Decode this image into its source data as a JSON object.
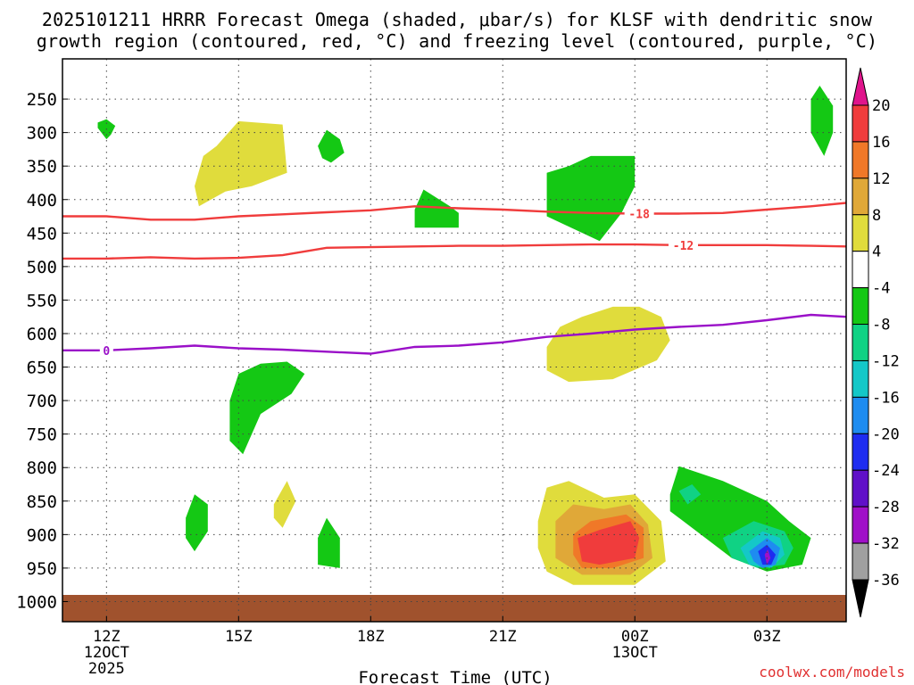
{
  "chart_data": {
    "type": "heatmap",
    "title_line1": "2025101211 HRRR Forecast Omega (shaded, μbar/s) for KLSF with dendritic snow",
    "title_line2": "growth region (contoured, red, °C) and freezing level (contoured, purple, °C)",
    "xlabel": "Forecast Time (UTC)",
    "ylabel": "",
    "watermark": "coolwx.com/models",
    "xlim": [
      11.0,
      28.8
    ],
    "ylim": [
      1030,
      190
    ],
    "y_ticks": [
      250,
      300,
      350,
      400,
      450,
      500,
      550,
      600,
      650,
      700,
      750,
      800,
      850,
      900,
      950,
      1000
    ],
    "y_tick_labels": [
      "250",
      "300",
      "350",
      "400",
      "450",
      "500",
      "550",
      "600",
      "650",
      "700",
      "750",
      "800",
      "850",
      "900",
      "950",
      "1000"
    ],
    "x_ticks": [
      {
        "hour": 12,
        "label": "12Z",
        "sub1": "12OCT",
        "sub2": "2025"
      },
      {
        "hour": 15,
        "label": "15Z",
        "sub1": "",
        "sub2": ""
      },
      {
        "hour": 18,
        "label": "18Z",
        "sub1": "",
        "sub2": ""
      },
      {
        "hour": 21,
        "label": "21Z",
        "sub1": "",
        "sub2": ""
      },
      {
        "hour": 24,
        "label": "00Z",
        "sub1": "13OCT",
        "sub2": ""
      },
      {
        "hour": 27,
        "label": "03Z",
        "sub1": "",
        "sub2": ""
      }
    ],
    "colorbar": {
      "levels": [
        "20",
        "16",
        "12",
        "8",
        "4",
        "-4",
        "-8",
        "-12",
        "-16",
        "-20",
        "-24",
        "-28",
        "-32",
        "-36"
      ],
      "colors": [
        "#f03c3c",
        "#f07828",
        "#e0a838",
        "#e0dc3c",
        "#ffffff",
        "#14c814",
        "#10d284",
        "#14c8c8",
        "#1e8cf0",
        "#1e2cf0",
        "#6010c8",
        "#a010c8",
        "#a0a0a0"
      ],
      "top_arrow_color": "#e0148c",
      "bottom_arrow_color": "#000000"
    },
    "contours": [
      {
        "name": "dgz-top",
        "value_label": "-18",
        "color": "#f03c3c",
        "points": [
          [
            11,
            425
          ],
          [
            12,
            425
          ],
          [
            13,
            430
          ],
          [
            14,
            430
          ],
          [
            15,
            425
          ],
          [
            16,
            422
          ],
          [
            17,
            419
          ],
          [
            18,
            416
          ],
          [
            19,
            410
          ],
          [
            20,
            413
          ],
          [
            21,
            415
          ],
          [
            22,
            418
          ],
          [
            23,
            420
          ],
          [
            24,
            421
          ],
          [
            25,
            421
          ],
          [
            26,
            420
          ],
          [
            27,
            415
          ],
          [
            28,
            410
          ],
          [
            28.8,
            405
          ]
        ],
        "label_hour": 24.1
      },
      {
        "name": "dgz-bottom",
        "value_label": "-12",
        "color": "#f03c3c",
        "points": [
          [
            11,
            488
          ],
          [
            12,
            488
          ],
          [
            13,
            486
          ],
          [
            14,
            488
          ],
          [
            15,
            487
          ],
          [
            16,
            483
          ],
          [
            17,
            472
          ],
          [
            18,
            471
          ],
          [
            19,
            470
          ],
          [
            20,
            469
          ],
          [
            21,
            469
          ],
          [
            22,
            468
          ],
          [
            23,
            467
          ],
          [
            24,
            467
          ],
          [
            25,
            468
          ],
          [
            26,
            468
          ],
          [
            27,
            468
          ],
          [
            28,
            469
          ],
          [
            28.8,
            470
          ]
        ],
        "label_hour": 25.1
      },
      {
        "name": "freezing-level",
        "value_label": "0",
        "color": "#9a10c8",
        "points": [
          [
            11,
            625
          ],
          [
            12,
            625
          ],
          [
            13,
            622
          ],
          [
            14,
            618
          ],
          [
            15,
            622
          ],
          [
            16,
            624
          ],
          [
            17,
            627
          ],
          [
            18,
            630
          ],
          [
            19,
            620
          ],
          [
            20,
            618
          ],
          [
            21,
            613
          ],
          [
            22,
            605
          ],
          [
            23,
            600
          ],
          [
            24,
            594
          ],
          [
            25,
            590
          ],
          [
            26,
            587
          ],
          [
            27,
            580
          ],
          [
            28,
            572
          ],
          [
            28.8,
            575
          ]
        ],
        "label_hour": 12
      }
    ],
    "omega_regions": [
      {
        "name": "green-a",
        "fill": "#14c814",
        "pts": [
          [
            11.8,
            285
          ],
          [
            12.0,
            280
          ],
          [
            12.2,
            290
          ],
          [
            12.1,
            303
          ],
          [
            12.0,
            310
          ],
          [
            11.8,
            293
          ]
        ]
      },
      {
        "name": "green-b",
        "fill": "#14c814",
        "pts": [
          [
            16.8,
            320
          ],
          [
            17.0,
            296
          ],
          [
            17.3,
            310
          ],
          [
            17.4,
            330
          ],
          [
            17.1,
            345
          ],
          [
            16.9,
            338
          ]
        ]
      },
      {
        "name": "green-c",
        "fill": "#14c814",
        "pts": [
          [
            28.0,
            250
          ],
          [
            28.2,
            230
          ],
          [
            28.5,
            260
          ],
          [
            28.5,
            300
          ],
          [
            28.3,
            335
          ],
          [
            28.0,
            300
          ]
        ]
      },
      {
        "name": "green-d",
        "fill": "#14c814",
        "pts": [
          [
            19.0,
            415
          ],
          [
            19.2,
            385
          ],
          [
            19.8,
            410
          ],
          [
            20.0,
            420
          ],
          [
            20.0,
            442
          ],
          [
            19.0,
            442
          ]
        ]
      },
      {
        "name": "green-e",
        "fill": "#14c814",
        "pts": [
          [
            22.0,
            360
          ],
          [
            22.5,
            350
          ],
          [
            23.0,
            335
          ],
          [
            24.0,
            335
          ],
          [
            24.0,
            380
          ],
          [
            23.7,
            420
          ],
          [
            23.2,
            462
          ],
          [
            22.0,
            425
          ]
        ]
      },
      {
        "name": "yellow-a",
        "fill": "#e0dc3c",
        "pts": [
          [
            14.0,
            380
          ],
          [
            14.2,
            335
          ],
          [
            14.5,
            320
          ],
          [
            15.0,
            283
          ],
          [
            16.0,
            288
          ],
          [
            16.1,
            360
          ],
          [
            15.3,
            380
          ],
          [
            14.7,
            388
          ],
          [
            14.1,
            410
          ]
        ]
      },
      {
        "name": "yellow-b",
        "fill": "#e0dc3c",
        "pts": [
          [
            22.0,
            620
          ],
          [
            22.3,
            590
          ],
          [
            22.8,
            575
          ],
          [
            23.5,
            560
          ],
          [
            24.1,
            560
          ],
          [
            24.6,
            575
          ],
          [
            24.8,
            610
          ],
          [
            24.5,
            640
          ],
          [
            23.5,
            668
          ],
          [
            22.5,
            672
          ],
          [
            22.0,
            655
          ]
        ]
      },
      {
        "name": "green-f",
        "fill": "#14c814",
        "pts": [
          [
            14.8,
            700
          ],
          [
            15.0,
            660
          ],
          [
            15.5,
            645
          ],
          [
            16.1,
            642
          ],
          [
            16.5,
            660
          ],
          [
            16.2,
            690
          ],
          [
            15.5,
            720
          ],
          [
            15.1,
            780
          ],
          [
            14.8,
            760
          ]
        ]
      },
      {
        "name": "green-g",
        "fill": "#14c814",
        "pts": [
          [
            13.8,
            875
          ],
          [
            14.0,
            840
          ],
          [
            14.3,
            855
          ],
          [
            14.3,
            895
          ],
          [
            14.0,
            925
          ],
          [
            13.8,
            905
          ]
        ]
      },
      {
        "name": "yellow-c",
        "fill": "#e0dc3c",
        "pts": [
          [
            15.8,
            855
          ],
          [
            16.1,
            820
          ],
          [
            16.3,
            850
          ],
          [
            16.0,
            890
          ],
          [
            15.8,
            875
          ]
        ]
      },
      {
        "name": "green-h",
        "fill": "#14c814",
        "pts": [
          [
            16.8,
            905
          ],
          [
            17.0,
            875
          ],
          [
            17.3,
            905
          ],
          [
            17.3,
            950
          ],
          [
            16.8,
            945
          ]
        ]
      },
      {
        "name": "yellow-d",
        "fill": "#e0dc3c",
        "pts": [
          [
            21.8,
            880
          ],
          [
            22.0,
            830
          ],
          [
            22.5,
            820
          ],
          [
            23.3,
            845
          ],
          [
            24.0,
            840
          ],
          [
            24.6,
            880
          ],
          [
            24.7,
            940
          ],
          [
            24.0,
            975
          ],
          [
            22.6,
            975
          ],
          [
            22.0,
            955
          ],
          [
            21.8,
            920
          ]
        ]
      },
      {
        "name": "orange-light",
        "fill": "#e0a838",
        "pts": [
          [
            22.2,
            880
          ],
          [
            22.6,
            855
          ],
          [
            23.3,
            862
          ],
          [
            23.9,
            855
          ],
          [
            24.3,
            885
          ],
          [
            24.4,
            935
          ],
          [
            23.9,
            960
          ],
          [
            22.8,
            960
          ],
          [
            22.2,
            935
          ]
        ]
      },
      {
        "name": "orange",
        "fill": "#f07828",
        "pts": [
          [
            22.6,
            900
          ],
          [
            23.0,
            880
          ],
          [
            23.8,
            870
          ],
          [
            24.2,
            890
          ],
          [
            24.2,
            935
          ],
          [
            23.5,
            950
          ],
          [
            22.8,
            950
          ],
          [
            22.6,
            930
          ]
        ]
      },
      {
        "name": "red",
        "fill": "#f03c3c",
        "pts": [
          [
            22.7,
            905
          ],
          [
            23.2,
            893
          ],
          [
            23.9,
            880
          ],
          [
            24.1,
            905
          ],
          [
            24.0,
            935
          ],
          [
            23.2,
            945
          ],
          [
            22.8,
            940
          ]
        ]
      },
      {
        "name": "green-i",
        "fill": "#14c814",
        "pts": [
          [
            24.8,
            840
          ],
          [
            25.0,
            798
          ],
          [
            26.0,
            820
          ],
          [
            27.0,
            850
          ],
          [
            27.5,
            880
          ],
          [
            28.0,
            905
          ],
          [
            27.8,
            945
          ],
          [
            27.0,
            955
          ],
          [
            26.2,
            935
          ],
          [
            25.5,
            900
          ],
          [
            25.0,
            875
          ],
          [
            24.8,
            865
          ]
        ]
      },
      {
        "name": "teal-1",
        "fill": "#10d284",
        "pts": [
          [
            26.0,
            905
          ],
          [
            26.7,
            880
          ],
          [
            27.4,
            895
          ],
          [
            27.6,
            920
          ],
          [
            27.4,
            945
          ],
          [
            26.8,
            950
          ],
          [
            26.2,
            935
          ]
        ]
      },
      {
        "name": "teal-2",
        "fill": "#14c8c8",
        "pts": [
          [
            26.4,
            920
          ],
          [
            26.9,
            895
          ],
          [
            27.3,
            905
          ],
          [
            27.4,
            930
          ],
          [
            27.1,
            950
          ],
          [
            26.6,
            945
          ]
        ]
      },
      {
        "name": "blue-1",
        "fill": "#1e8cf0",
        "pts": [
          [
            26.6,
            925
          ],
          [
            27.0,
            905
          ],
          [
            27.3,
            920
          ],
          [
            27.2,
            945
          ],
          [
            26.9,
            950
          ],
          [
            26.7,
            940
          ]
        ]
      },
      {
        "name": "blue-2",
        "fill": "#1e2cf0",
        "pts": [
          [
            26.8,
            925
          ],
          [
            27.0,
            915
          ],
          [
            27.2,
            930
          ],
          [
            27.1,
            945
          ],
          [
            26.9,
            945
          ]
        ]
      },
      {
        "name": "purple-core",
        "fill": "#a010c8",
        "pts": [
          [
            26.95,
            930
          ],
          [
            27.02,
            922
          ],
          [
            27.08,
            935
          ],
          [
            27.0,
            945
          ]
        ]
      },
      {
        "name": "teal-small",
        "fill": "#10d284",
        "pts": [
          [
            25.0,
            835
          ],
          [
            25.3,
            825
          ],
          [
            25.5,
            840
          ],
          [
            25.2,
            855
          ]
        ]
      },
      {
        "name": "terrain",
        "fill": "#a0522d",
        "pts": [
          [
            11,
            990
          ],
          [
            28.8,
            990
          ],
          [
            28.8,
            1030
          ],
          [
            11,
            1030
          ]
        ]
      }
    ]
  }
}
